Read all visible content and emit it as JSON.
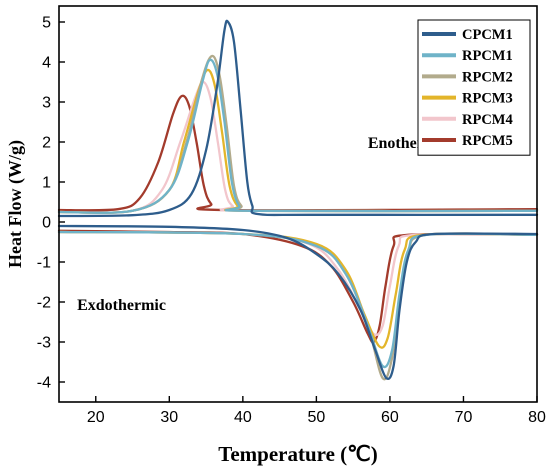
{
  "chart_data": {
    "type": "line",
    "title": "",
    "xlabel": "Temperature (℃)",
    "ylabel": "Heat Flow (W/g)",
    "xlim": [
      15,
      80
    ],
    "ylim": [
      -4.5,
      5.4
    ],
    "xticks": [
      20,
      30,
      40,
      50,
      60,
      70,
      80
    ],
    "yticks": [
      -4,
      -3,
      -2,
      -1,
      0,
      1,
      2,
      3,
      4,
      5
    ],
    "grid": false,
    "legend_position": "top-right",
    "annotations": [
      {
        "text": "Enothermic",
        "x": 62.5,
        "y": 1.85
      },
      {
        "text": "Exdothermic",
        "x": 23.5,
        "y": -2.2
      }
    ],
    "series": [
      {
        "name": "CPCM1",
        "color": "#2E5D8C",
        "heating": [
          [
            15,
            0.15
          ],
          [
            25,
            0.17
          ],
          [
            30,
            0.3
          ],
          [
            33,
            0.7
          ],
          [
            35,
            1.8
          ],
          [
            36.5,
            3.4
          ],
          [
            37.5,
            4.8
          ],
          [
            38,
            5.0
          ],
          [
            38.8,
            4.5
          ],
          [
            39.7,
            2.8
          ],
          [
            40.6,
            1.0
          ],
          [
            41.3,
            0.4
          ],
          [
            42,
            0.2
          ],
          [
            50,
            0.18
          ],
          [
            80,
            0.18
          ]
        ],
        "cooling": [
          [
            15,
            -0.1
          ],
          [
            30,
            -0.12
          ],
          [
            40,
            -0.2
          ],
          [
            46,
            -0.4
          ],
          [
            50,
            -0.8
          ],
          [
            53,
            -1.3
          ],
          [
            56,
            -2.2
          ],
          [
            58,
            -3.2
          ],
          [
            59.5,
            -3.9
          ],
          [
            60.5,
            -3.6
          ],
          [
            61.3,
            -2.2
          ],
          [
            62.3,
            -1.0
          ],
          [
            63.5,
            -0.5
          ],
          [
            66,
            -0.3
          ],
          [
            80,
            -0.3
          ]
        ]
      },
      {
        "name": "RPCM1",
        "color": "#6FB3C8",
        "heating": [
          [
            15,
            0.25
          ],
          [
            25,
            0.28
          ],
          [
            30,
            0.8
          ],
          [
            32.5,
            2.0
          ],
          [
            34.5,
            3.5
          ],
          [
            35.5,
            4.05
          ],
          [
            36.5,
            3.7
          ],
          [
            37.5,
            2.5
          ],
          [
            38.5,
            1.0
          ],
          [
            39.5,
            0.4
          ],
          [
            41,
            0.28
          ],
          [
            80,
            0.28
          ]
        ],
        "cooling": [
          [
            15,
            -0.25
          ],
          [
            40,
            -0.3
          ],
          [
            50,
            -0.6
          ],
          [
            54,
            -1.3
          ],
          [
            57,
            -2.6
          ],
          [
            59,
            -3.6
          ],
          [
            60.3,
            -3.2
          ],
          [
            61.3,
            -1.8
          ],
          [
            62.5,
            -0.7
          ],
          [
            65,
            -0.32
          ],
          [
            80,
            -0.32
          ]
        ]
      },
      {
        "name": "RPCM2",
        "color": "#B2AB8C",
        "heating": [
          [
            15,
            0.25
          ],
          [
            25,
            0.28
          ],
          [
            30,
            0.8
          ],
          [
            32.5,
            2.1
          ],
          [
            34.5,
            3.6
          ],
          [
            35.8,
            4.15
          ],
          [
            36.8,
            3.7
          ],
          [
            37.8,
            2.4
          ],
          [
            38.8,
            0.9
          ],
          [
            39.8,
            0.4
          ],
          [
            41.5,
            0.28
          ],
          [
            80,
            0.28
          ]
        ],
        "cooling": [
          [
            15,
            -0.25
          ],
          [
            40,
            -0.3
          ],
          [
            50,
            -0.6
          ],
          [
            54,
            -1.3
          ],
          [
            57,
            -2.6
          ],
          [
            59,
            -3.9
          ],
          [
            60.3,
            -3.4
          ],
          [
            61.3,
            -2.0
          ],
          [
            62.5,
            -0.8
          ],
          [
            65,
            -0.32
          ],
          [
            80,
            -0.32
          ]
        ]
      },
      {
        "name": "RPCM3",
        "color": "#E3B52A",
        "heating": [
          [
            15,
            0.25
          ],
          [
            25,
            0.28
          ],
          [
            30,
            0.8
          ],
          [
            32,
            2.0
          ],
          [
            34,
            3.3
          ],
          [
            35.2,
            3.8
          ],
          [
            36.2,
            3.4
          ],
          [
            37.2,
            2.2
          ],
          [
            38.2,
            0.9
          ],
          [
            39.3,
            0.4
          ],
          [
            41,
            0.28
          ],
          [
            80,
            0.28
          ]
        ],
        "cooling": [
          [
            15,
            -0.25
          ],
          [
            40,
            -0.3
          ],
          [
            50,
            -0.55
          ],
          [
            54,
            -1.2
          ],
          [
            56.5,
            -2.3
          ],
          [
            58.5,
            -3.1
          ],
          [
            59.7,
            -2.9
          ],
          [
            60.8,
            -1.8
          ],
          [
            62,
            -0.7
          ],
          [
            64.5,
            -0.32
          ],
          [
            80,
            -0.32
          ]
        ]
      },
      {
        "name": "RPCM4",
        "color": "#F2C6CC",
        "heating": [
          [
            15,
            0.25
          ],
          [
            25,
            0.28
          ],
          [
            29,
            0.8
          ],
          [
            31.5,
            2.0
          ],
          [
            33.5,
            3.1
          ],
          [
            34.6,
            3.5
          ],
          [
            35.6,
            3.1
          ],
          [
            36.6,
            2.0
          ],
          [
            37.6,
            0.8
          ],
          [
            38.6,
            0.4
          ],
          [
            40.5,
            0.28
          ],
          [
            80,
            0.28
          ]
        ],
        "cooling": [
          [
            15,
            -0.25
          ],
          [
            40,
            -0.3
          ],
          [
            49,
            -0.55
          ],
          [
            53,
            -1.2
          ],
          [
            56,
            -2.2
          ],
          [
            57.8,
            -2.8
          ],
          [
            59,
            -2.6
          ],
          [
            60,
            -1.6
          ],
          [
            61.2,
            -0.6
          ],
          [
            63.5,
            -0.32
          ],
          [
            80,
            -0.32
          ]
        ]
      },
      {
        "name": "RPCM5",
        "color": "#A33B2C",
        "heating": [
          [
            15,
            0.3
          ],
          [
            23,
            0.32
          ],
          [
            26,
            0.6
          ],
          [
            28.5,
            1.5
          ],
          [
            30.5,
            2.7
          ],
          [
            31.7,
            3.15
          ],
          [
            32.7,
            2.9
          ],
          [
            33.7,
            2.0
          ],
          [
            34.7,
            0.9
          ],
          [
            35.7,
            0.45
          ],
          [
            37.5,
            0.3
          ],
          [
            80,
            0.32
          ]
        ],
        "cooling": [
          [
            15,
            -0.22
          ],
          [
            30,
            -0.25
          ],
          [
            40,
            -0.3
          ],
          [
            48,
            -0.6
          ],
          [
            52,
            -1.1
          ],
          [
            55,
            -2.0
          ],
          [
            57,
            -2.8
          ],
          [
            57.8,
            -3.0
          ],
          [
            58.6,
            -2.6
          ],
          [
            59.4,
            -1.6
          ],
          [
            60.5,
            -0.6
          ],
          [
            62.5,
            -0.32
          ],
          [
            80,
            -0.32
          ]
        ]
      }
    ]
  }
}
